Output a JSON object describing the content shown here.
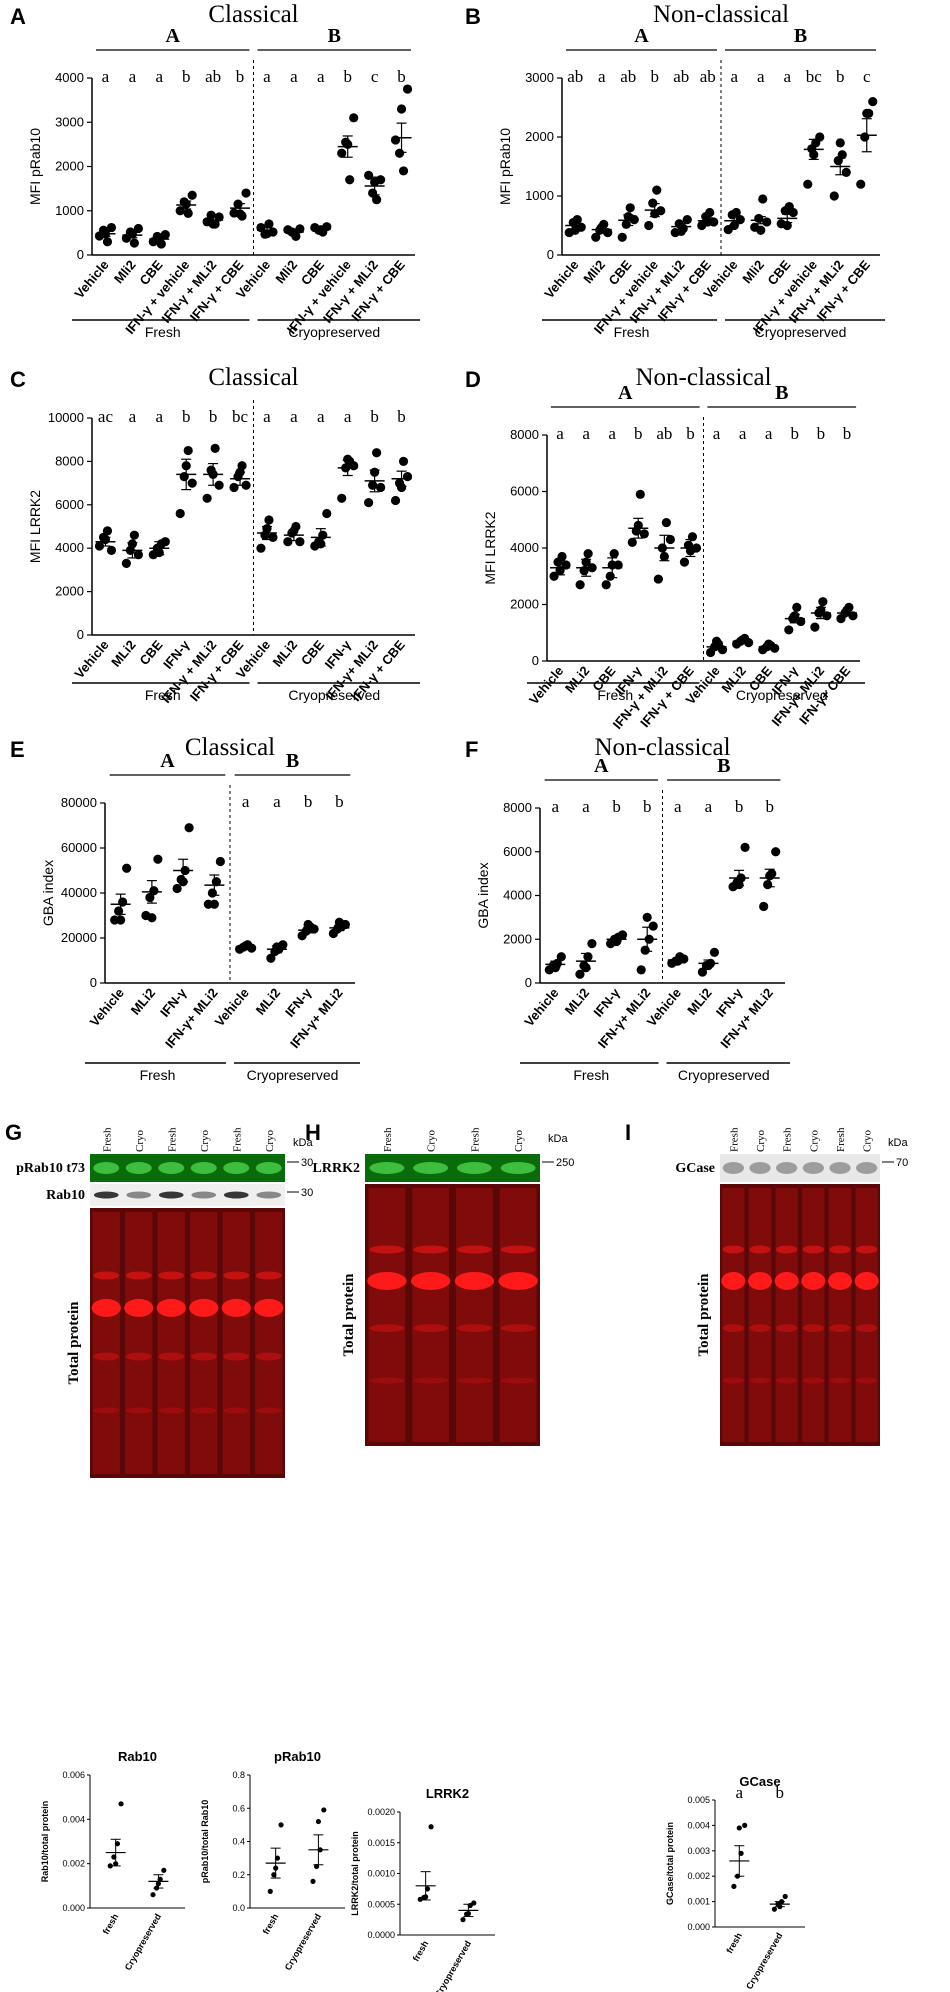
{
  "panels": {
    "A": {
      "letter": "A",
      "title": "Classical",
      "group_left": "A",
      "group_right": "B",
      "letters_left": [
        "a",
        "a",
        "a",
        "b",
        "ab",
        "b"
      ],
      "letters_right": [
        "a",
        "a",
        "a",
        "b",
        "c",
        "b"
      ],
      "fresh_label": "Fresh",
      "cryo_label": "Cryopreserved"
    },
    "B": {
      "letter": "B",
      "title": "Non-classical",
      "group_left": "A",
      "group_right": "B",
      "letters_left": [
        "ab",
        "a",
        "ab",
        "b",
        "ab",
        "ab"
      ],
      "letters_right": [
        "a",
        "a",
        "a",
        "bc",
        "b",
        "c"
      ],
      "fresh_label": "Fresh",
      "cryo_label": "Cryopreserved"
    },
    "C": {
      "letter": "C",
      "title": "Classical",
      "group_left": "",
      "group_right": "",
      "letters_left": [
        "ac",
        "a",
        "a",
        "b",
        "b",
        "bc"
      ],
      "letters_right": [
        "a",
        "a",
        "a",
        "a",
        "b",
        "b"
      ],
      "fresh_label": "Fresh",
      "cryo_label": "Cryopreserved"
    },
    "D": {
      "letter": "D",
      "title": "Non-classical",
      "group_left": "A",
      "group_right": "B",
      "letters_left": [
        "a",
        "a",
        "a",
        "b",
        "ab",
        "b"
      ],
      "letters_right": [
        "a",
        "a",
        "a",
        "b",
        "b",
        "b"
      ],
      "fresh_label": "Fresh",
      "cryo_label": "Cryopreserved"
    },
    "E": {
      "letter": "E",
      "title": "Classical",
      "group_left": "A",
      "group_right": "B",
      "letters_left": [],
      "letters_right": [
        "a",
        "a",
        "b",
        "b"
      ],
      "fresh_label": "Fresh",
      "cryo_label": "Cryopreserved"
    },
    "F": {
      "letter": "F",
      "title": "Non-classical",
      "group_left": "A",
      "group_right": "B",
      "letters_left": [
        "a",
        "a",
        "b",
        "b"
      ],
      "letters_right": [
        "a",
        "a",
        "b",
        "b"
      ],
      "fresh_label": "Fresh",
      "cryo_label": "Cryopreserved"
    },
    "G": {
      "letter": "G",
      "lane_labels": [
        "Fresh",
        "Cryo",
        "Fresh",
        "Cryo",
        "Fresh",
        "Cryo"
      ],
      "kda": "kDa",
      "band1_label": "pRab10  t73",
      "band2_label": "Rab10",
      "marker1": "30",
      "marker2": "30",
      "total_label": "Total protein"
    },
    "H": {
      "letter": "H",
      "lane_labels": [
        "Fresh",
        "Cryo",
        "Fresh",
        "Cryo"
      ],
      "kda": "kDa",
      "band1_label": "LRRK2",
      "marker1": "250",
      "total_label": "Total protein"
    },
    "I": {
      "letter": "I",
      "lane_labels": [
        "Fresh",
        "Cryo",
        "Fresh",
        "Cryo",
        "Fresh",
        "Cryo"
      ],
      "kda": "kDa",
      "band1_label": "GCase",
      "marker1": "70",
      "total_label": "Total protein",
      "sig_letters": [
        "a",
        "b"
      ]
    }
  },
  "chart_data": [
    {
      "id": "A",
      "type": "scatter",
      "title": "Classical",
      "ylabel": "MFI pRab10",
      "ylim": [
        0,
        4000
      ],
      "yticks": [
        0,
        1000,
        2000,
        3000,
        4000
      ],
      "categories": [
        "Vehicle",
        "Mli2",
        "CBE",
        "IFN-γ + vehicle",
        "IFN-γ + MLi2",
        "IFN-γ + CBE",
        "Vehicle",
        "Mli2",
        "CBE",
        "IFN-γ + vehicle",
        "IFN-γ + MLi2",
        "IFN-γ + CBE"
      ],
      "means": [
        480,
        450,
        360,
        1130,
        790,
        1060,
        560,
        520,
        580,
        2450,
        1560,
        2650
      ],
      "sems": [
        60,
        60,
        50,
        90,
        70,
        100,
        60,
        40,
        30,
        240,
        200,
        330
      ],
      "points": [
        [
          430,
          560,
          300,
          620,
          480
        ],
        [
          380,
          520,
          270,
          600,
          470
        ],
        [
          300,
          420,
          250,
          460,
          330
        ],
        [
          1000,
          1200,
          940,
          1350,
          1150
        ],
        [
          750,
          900,
          700,
          860,
          700
        ],
        [
          950,
          1150,
          880,
          1400,
          930
        ],
        [
          620,
          470,
          700,
          520,
          480
        ],
        [
          570,
          520,
          420,
          590,
          500
        ],
        [
          620,
          560,
          520,
          640,
          570
        ],
        [
          2300,
          2550,
          1700,
          3100,
          2500
        ],
        [
          1800,
          1400,
          1250,
          1700,
          1650
        ],
        [
          2600,
          2300,
          1900,
          3750,
          3300
        ]
      ],
      "divider_after": 6
    },
    {
      "id": "B",
      "type": "scatter",
      "title": "Non-classical",
      "ylabel": "MFI pRab10",
      "ylim": [
        0,
        3000
      ],
      "yticks": [
        0,
        1000,
        2000,
        3000
      ],
      "categories": [
        "Vehicle",
        "Mli2",
        "CBE",
        "IFN-γ + vehicle",
        "IFN-γ + MLi2",
        "IFN-γ + CBE",
        "Vehicle",
        "Mli2",
        "CBE",
        "IFN-γ + vehicle",
        "IFN-γ + MLi2",
        "IFN-γ + CBE"
      ],
      "means": [
        500,
        430,
        590,
        760,
        480,
        580,
        580,
        590,
        620,
        1790,
        1500,
        2030
      ],
      "sems": [
        60,
        60,
        90,
        110,
        50,
        50,
        70,
        60,
        70,
        170,
        140,
        280
      ],
      "points": [
        [
          380,
          550,
          600,
          470,
          420
        ],
        [
          300,
          420,
          520,
          380,
          470
        ],
        [
          300,
          520,
          800,
          600,
          650
        ],
        [
          500,
          880,
          1100,
          750,
          700
        ],
        [
          380,
          530,
          450,
          600,
          400
        ],
        [
          500,
          650,
          720,
          560,
          560
        ],
        [
          430,
          680,
          720,
          600,
          500
        ],
        [
          470,
          620,
          950,
          560,
          420
        ],
        [
          530,
          750,
          820,
          720,
          500
        ],
        [
          1200,
          1800,
          1900,
          2000,
          1700
        ],
        [
          1000,
          1600,
          1700,
          1400,
          1900
        ],
        [
          1200,
          2000,
          2400,
          2600,
          2400
        ]
      ],
      "divider_after": 6
    },
    {
      "id": "C",
      "type": "scatter",
      "title": "Classical",
      "ylabel": "MFI LRRK2",
      "ylim": [
        0,
        10000
      ],
      "yticks": [
        0,
        2000,
        4000,
        6000,
        8000,
        10000
      ],
      "categories": [
        "Vehicle",
        "MLi2",
        "CBE",
        "IFN-γ",
        "IFN-γ + MLi2",
        "IFN-γ + CBE",
        "Vehicle",
        "MLi2",
        "CBE",
        "IFN-γ",
        "IFN-γ+ MLi2",
        "IFN-γ + CBE"
      ],
      "means": [
        4300,
        3900,
        4000,
        7400,
        7400,
        7200,
        4700,
        4600,
        4500,
        7700,
        7100,
        7200
      ],
      "sems": [
        200,
        350,
        300,
        700,
        500,
        300,
        300,
        250,
        400,
        350,
        500,
        350
      ],
      "points": [
        [
          4100,
          4500,
          4800,
          3900,
          4400
        ],
        [
          3300,
          3900,
          4600,
          3700,
          4200
        ],
        [
          3700,
          4000,
          4200,
          4300,
          3800
        ],
        [
          5600,
          7300,
          8500,
          7000,
          7800
        ],
        [
          6300,
          7600,
          8600,
          6900,
          7400
        ],
        [
          6800,
          7300,
          7800,
          6900,
          7500
        ],
        [
          4000,
          4600,
          5300,
          4500,
          4900
        ],
        [
          4300,
          4700,
          5000,
          4300,
          4800
        ],
        [
          4100,
          4300,
          4600,
          5600,
          4200
        ],
        [
          6300,
          7700,
          8000,
          7800,
          8100
        ],
        [
          6100,
          6900,
          8400,
          6800,
          7500
        ],
        [
          6200,
          7000,
          8000,
          7300,
          6800
        ]
      ],
      "divider_after": 6
    },
    {
      "id": "D",
      "type": "scatter",
      "title": "Non-classical",
      "ylabel": "MFI LRRK2",
      "ylim": [
        0,
        8000
      ],
      "yticks": [
        0,
        2000,
        4000,
        6000,
        8000
      ],
      "categories": [
        "Vehicle",
        "MLi2",
        "CBE",
        "IFN-γ",
        "IFN-γ + MLi2",
        "IFN-γ + CBE",
        "Vehicle",
        "MLi2",
        "CBE",
        "IFN-γ",
        "IFN-γ+ MLi2",
        "IFN-γ+ CBE"
      ],
      "means": [
        3300,
        3300,
        3300,
        4700,
        4000,
        4000,
        500,
        700,
        500,
        1500,
        1700,
        1700
      ],
      "sems": [
        250,
        300,
        350,
        350,
        450,
        300,
        100,
        60,
        60,
        150,
        200,
        100
      ],
      "points": [
        [
          3000,
          3500,
          3700,
          3400,
          3200
        ],
        [
          2700,
          3200,
          3800,
          3300,
          3500
        ],
        [
          2700,
          3000,
          3800,
          3400,
          3400
        ],
        [
          4200,
          4600,
          5900,
          4500,
          4800
        ],
        [
          2900,
          4000,
          4900,
          4300,
          3700
        ],
        [
          3500,
          4100,
          4400,
          4000,
          3900
        ],
        [
          300,
          500,
          600,
          400,
          700
        ],
        [
          600,
          700,
          800,
          650,
          750
        ],
        [
          400,
          500,
          550,
          450,
          600
        ],
        [
          1100,
          1500,
          1900,
          1400,
          1600
        ],
        [
          1200,
          1700,
          2100,
          1600,
          1800
        ],
        [
          1500,
          1700,
          1900,
          1600,
          1800
        ]
      ],
      "divider_after": 6
    },
    {
      "id": "E",
      "type": "scatter",
      "title": "Classical",
      "ylabel": "GBA index",
      "ylim": [
        0,
        80000
      ],
      "yticks": [
        0,
        20000,
        40000,
        60000,
        80000
      ],
      "categories": [
        "Vehicle",
        "MLi2",
        "IFN-γ",
        "IFN-γ+ MLi2",
        "Vehicle",
        "MLi2",
        "IFN-γ",
        "IFN-γ+ MLi2"
      ],
      "means": [
        35000,
        40500,
        50000,
        43500,
        16000,
        15000,
        23500,
        24500
      ],
      "sems": [
        4500,
        5000,
        5000,
        4500,
        800,
        1500,
        1200,
        1200
      ],
      "points": [
        [
          28000,
          32000,
          36000,
          51000,
          28000
        ],
        [
          30000,
          38000,
          41000,
          55000,
          29000
        ],
        [
          42000,
          46000,
          50000,
          69000,
          45000
        ],
        [
          35000,
          40000,
          45000,
          54000,
          35000
        ],
        [
          15000,
          16000,
          17000,
          15500,
          16500
        ],
        [
          11000,
          14000,
          15000,
          17000,
          16000
        ],
        [
          21000,
          23000,
          25000,
          24000,
          26000
        ],
        [
          22000,
          24000,
          25000,
          26000,
          27000
        ]
      ],
      "divider_after": 4
    },
    {
      "id": "F",
      "type": "scatter",
      "title": "Non-classical",
      "ylabel": "GBA index",
      "ylim": [
        0,
        8000
      ],
      "yticks": [
        0,
        2000,
        4000,
        6000,
        8000
      ],
      "categories": [
        "Vehicle",
        "MLi2",
        "IFN-γ",
        "IFN-γ+ MLi2",
        "Vehicle",
        "MLi2",
        "IFN-γ",
        "IFN-γ+ MLi2"
      ],
      "means": [
        850,
        1000,
        2000,
        2000,
        1050,
        900,
        4800,
        4800
      ],
      "sems": [
        150,
        350,
        100,
        550,
        100,
        150,
        350,
        400
      ],
      "points": [
        [
          600,
          800,
          900,
          1200,
          700
        ],
        [
          400,
          800,
          1200,
          1800,
          700
        ],
        [
          1800,
          2000,
          2100,
          2200,
          1900
        ],
        [
          600,
          1500,
          2000,
          2600,
          3000
        ],
        [
          900,
          1000,
          1200,
          1100,
          1000
        ],
        [
          500,
          800,
          900,
          1400,
          800
        ],
        [
          4400,
          4600,
          4800,
          6200,
          4500
        ],
        [
          3500,
          4500,
          5000,
          6000,
          4900
        ]
      ],
      "divider_after": 4
    },
    {
      "id": "G-Rab10",
      "type": "scatter",
      "title": "Rab10",
      "ylabel": "Rab10/total protein",
      "ylim": [
        0,
        0.006
      ],
      "yticks": [
        0.0,
        0.002,
        0.004,
        0.006
      ],
      "ytick_labels": [
        "0.000",
        "0.002",
        "0.004",
        "0.006"
      ],
      "categories": [
        "fresh",
        "Cryopreserved"
      ],
      "means": [
        0.0025,
        0.0012
      ],
      "sems": [
        0.0006,
        0.0003
      ],
      "points": [
        [
          0.0019,
          0.0023,
          0.0029,
          0.0047,
          0.002
        ],
        [
          0.0006,
          0.0009,
          0.0013,
          0.0017,
          0.0011
        ]
      ]
    },
    {
      "id": "G-pRab10",
      "type": "scatter",
      "title": "pRab10",
      "ylabel": "pRab10/total Rab10",
      "ylim": [
        0,
        0.8
      ],
      "yticks": [
        0.0,
        0.2,
        0.4,
        0.6,
        0.8
      ],
      "ytick_labels": [
        "0.0",
        "0.2",
        "0.4",
        "0.6",
        "0.8"
      ],
      "categories": [
        "fresh",
        "Cryopreserved"
      ],
      "means": [
        0.27,
        0.35
      ],
      "sems": [
        0.09,
        0.09
      ],
      "points": [
        [
          0.1,
          0.2,
          0.3,
          0.5,
          0.24
        ],
        [
          0.16,
          0.25,
          0.35,
          0.59,
          0.52
        ]
      ]
    },
    {
      "id": "H-LRRK2",
      "type": "scatter",
      "title": "LRRK2",
      "ylabel": "LRRK2/total protein",
      "ylim": [
        0,
        0.002
      ],
      "yticks": [
        0.0,
        0.0005,
        0.001,
        0.0015,
        0.002
      ],
      "ytick_labels": [
        "0.0000",
        "0.0005",
        "0.0010",
        "0.0015",
        "0.0020"
      ],
      "categories": [
        "fresh",
        "Cryopreserved"
      ],
      "means": [
        0.0008,
        0.0004
      ],
      "sems": [
        0.00023,
        0.0001
      ],
      "points": [
        [
          0.00058,
          0.00061,
          0.00075,
          0.00176,
          0.00062
        ],
        [
          0.00025,
          0.00034,
          0.00048,
          0.00052,
          0.00035
        ]
      ]
    },
    {
      "id": "I-GCase",
      "type": "scatter",
      "title": "GCase",
      "ylabel": "GCase/total protein",
      "ylim": [
        0,
        0.005
      ],
      "yticks": [
        0.0,
        0.001,
        0.002,
        0.003,
        0.004,
        0.005
      ],
      "ytick_labels": [
        "0.000",
        "0.001",
        "0.002",
        "0.003",
        "0.004",
        "0.005"
      ],
      "categories": [
        "fresh",
        "Cryopreserved"
      ],
      "means": [
        0.0026,
        0.0009
      ],
      "sems": [
        0.0006,
        0.0001
      ],
      "points": [
        [
          0.0016,
          0.002,
          0.0029,
          0.004,
          0.0039
        ],
        [
          0.0007,
          0.0009,
          0.001,
          0.0012,
          0.0008
        ]
      ]
    }
  ]
}
